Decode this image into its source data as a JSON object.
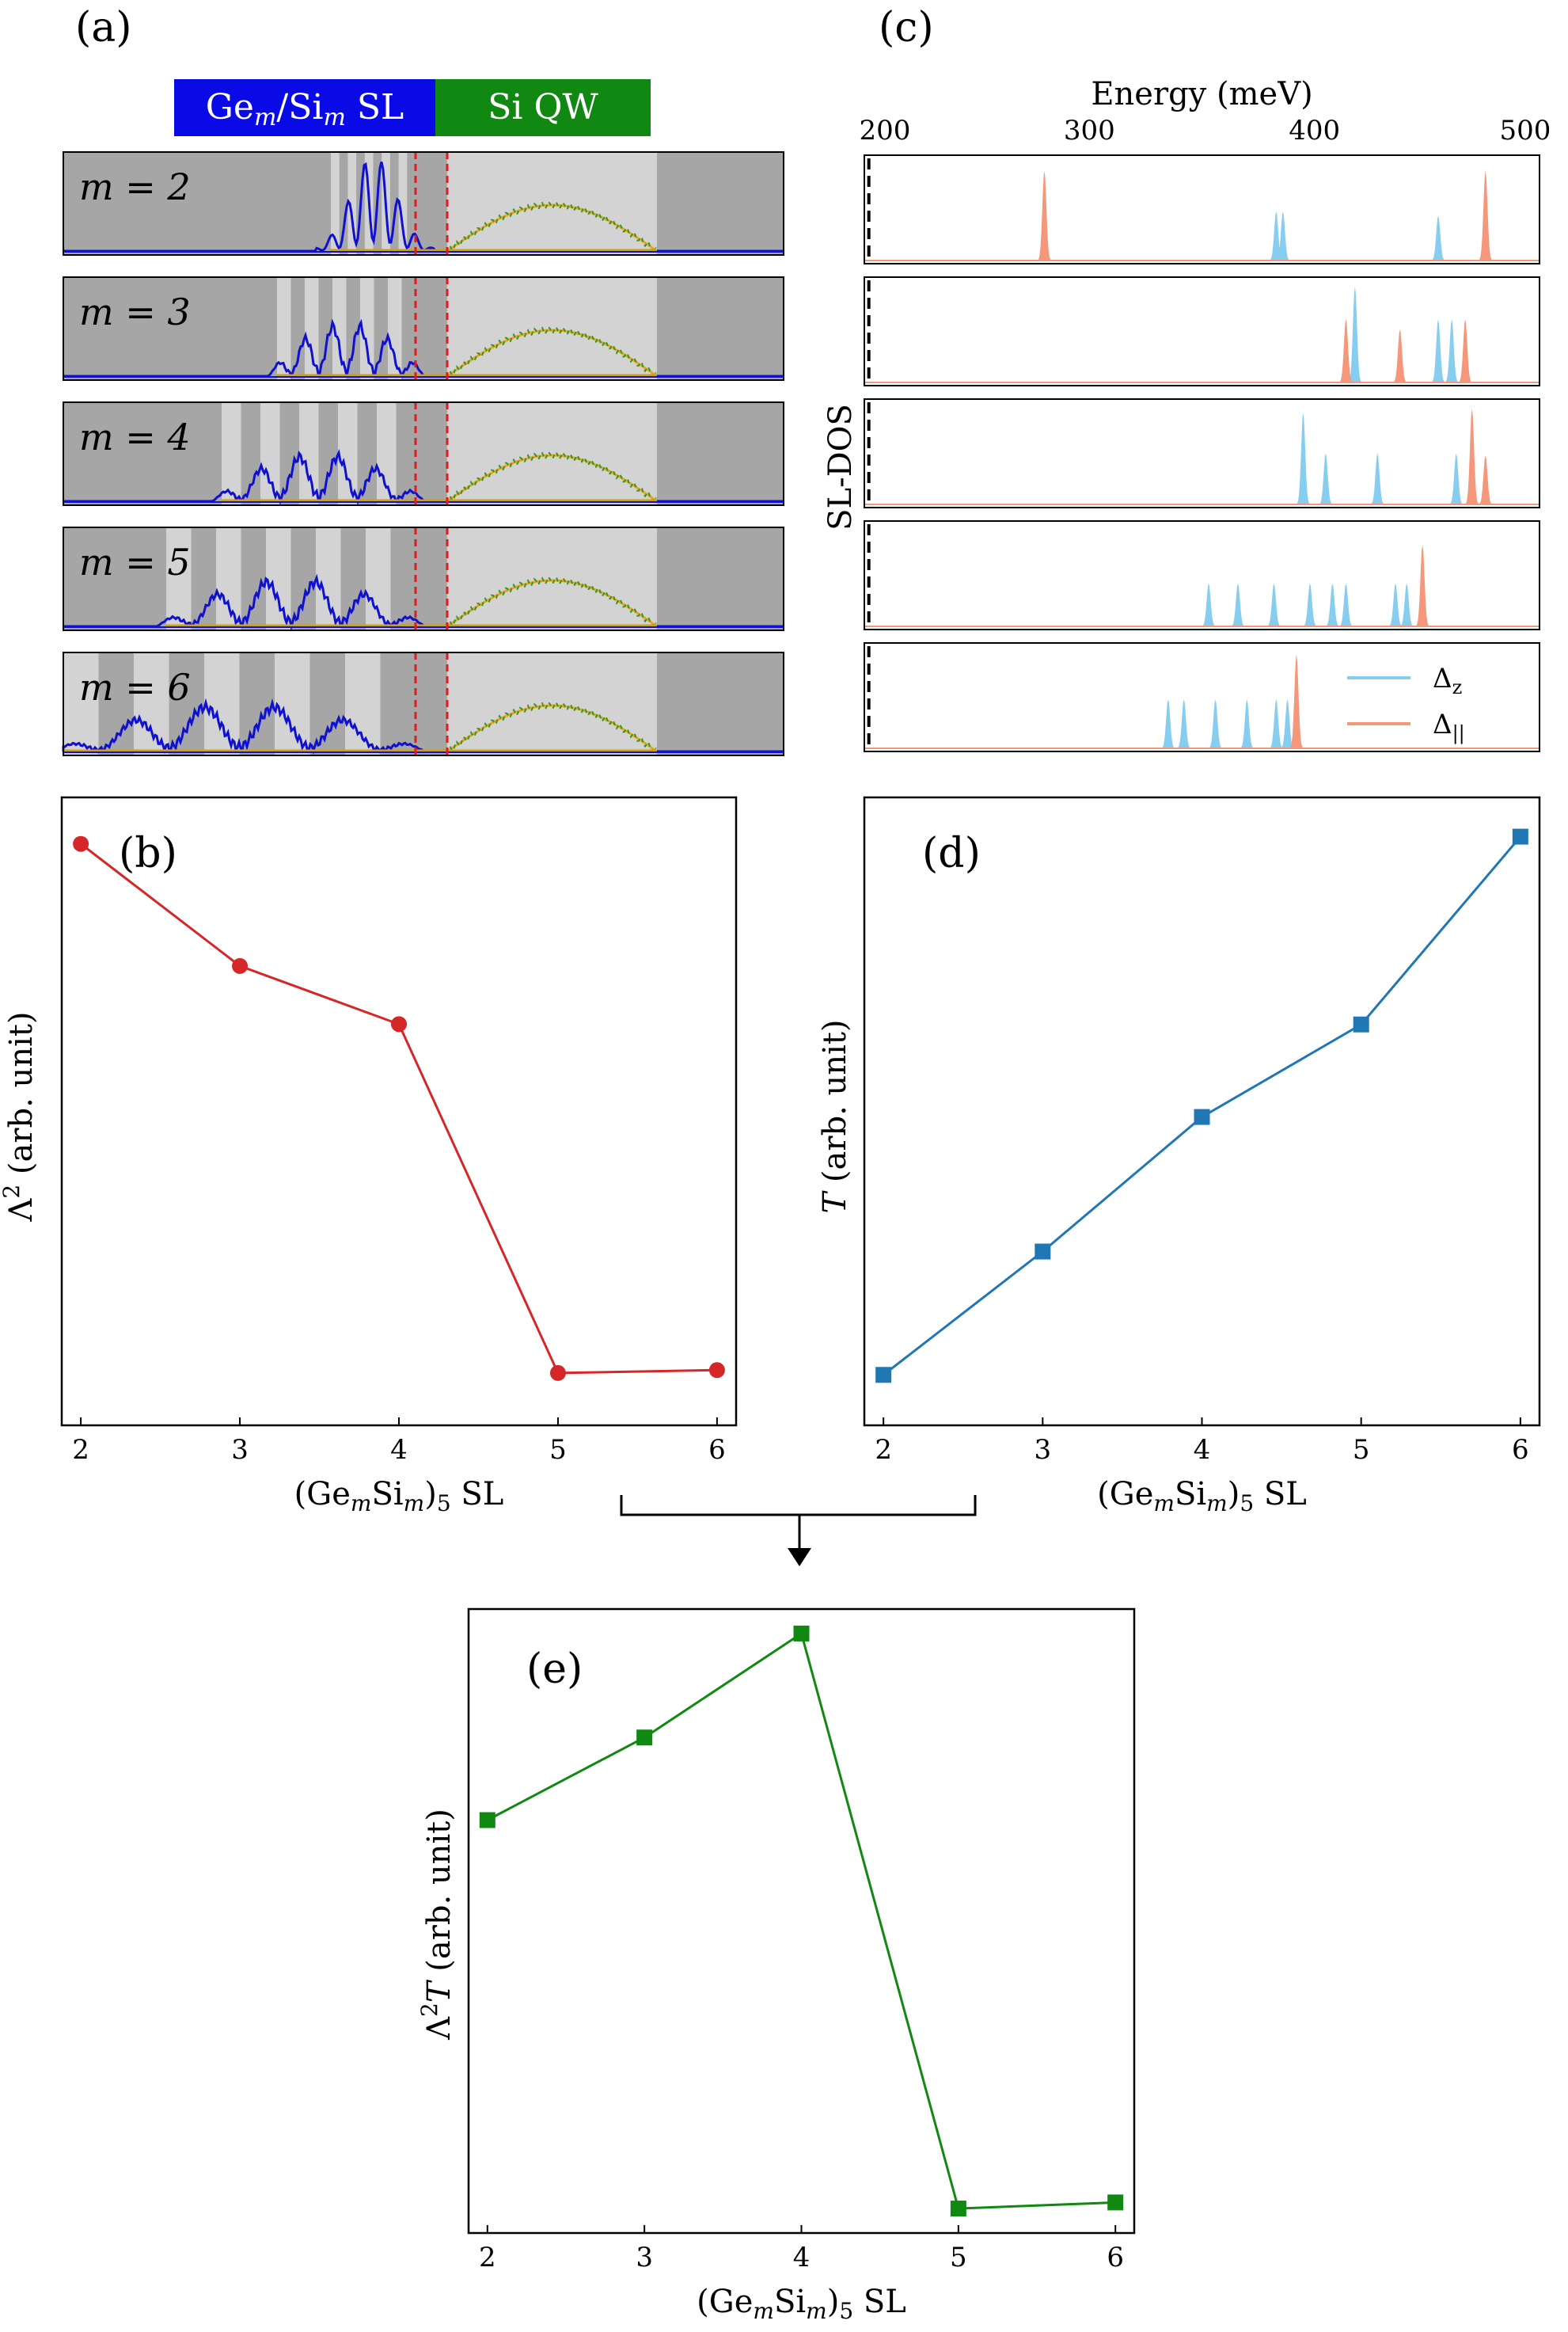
{
  "chart_data": [
    {
      "panel": "(a)",
      "type": "line",
      "header": {
        "sl_label": "Ge_m/Si_m SL",
        "qw_label": "Si QW",
        "sl_color": "#0a0ae6",
        "qw_color": "#118811"
      },
      "subplots": [
        {
          "label": "m = 2",
          "m": 2
        },
        {
          "label": "m = 3",
          "m": 3
        },
        {
          "label": "m = 4",
          "m": 4
        },
        {
          "label": "m = 5",
          "m": 5
        },
        {
          "label": "m = 6",
          "m": 6
        }
      ],
      "colors": {
        "sl_wavefunction": "#1010d0",
        "qw_wavefunction": "#f2a21a",
        "qw_overlay": "#2a9a2a",
        "interface": "#e31a1c",
        "ge": "#a6a6a6",
        "si": "#d3d3d3"
      }
    },
    {
      "panel": "(c)",
      "type": "area",
      "title": "Energy (meV)",
      "ylabel": "SL-DOS",
      "xlim": [
        200,
        500
      ],
      "xticks": [
        200,
        300,
        400,
        500
      ],
      "reference_line": 202,
      "legend": [
        {
          "name": "Δz",
          "color": "#87cdf0"
        },
        {
          "name": "Δ||",
          "color": "#f4977a"
        }
      ],
      "rows": [
        {
          "m": 2,
          "delta_z": [
            {
              "e": 383,
              "h": 0.48
            },
            {
              "e": 386,
              "h": 0.48
            },
            {
              "e": 455,
              "h": 0.44
            }
          ],
          "delta_par": [
            {
              "e": 280,
              "h": 0.88
            },
            {
              "e": 476,
              "h": 0.88
            }
          ]
        },
        {
          "m": 3,
          "delta_z": [
            {
              "e": 418,
              "h": 0.94
            },
            {
              "e": 455,
              "h": 0.62
            },
            {
              "e": 461,
              "h": 0.62
            }
          ],
          "delta_par": [
            {
              "e": 414,
              "h": 0.62
            },
            {
              "e": 438,
              "h": 0.52
            },
            {
              "e": 467,
              "h": 0.62
            }
          ]
        },
        {
          "m": 4,
          "delta_z": [
            {
              "e": 395,
              "h": 0.9
            },
            {
              "e": 405,
              "h": 0.5
            },
            {
              "e": 428,
              "h": 0.5
            },
            {
              "e": 463,
              "h": 0.5
            }
          ],
          "delta_par": [
            {
              "e": 470,
              "h": 0.94
            },
            {
              "e": 476,
              "h": 0.48
            }
          ]
        },
        {
          "m": 5,
          "delta_z": [
            {
              "e": 353,
              "h": 0.42
            },
            {
              "e": 366,
              "h": 0.42
            },
            {
              "e": 382,
              "h": 0.42
            },
            {
              "e": 398,
              "h": 0.42
            },
            {
              "e": 408,
              "h": 0.42
            },
            {
              "e": 414,
              "h": 0.42
            },
            {
              "e": 436,
              "h": 0.42
            },
            {
              "e": 441,
              "h": 0.42
            }
          ],
          "delta_par": [
            {
              "e": 448,
              "h": 0.8
            }
          ]
        },
        {
          "m": 6,
          "delta_z": [
            {
              "e": 335,
              "h": 0.48
            },
            {
              "e": 342,
              "h": 0.48
            },
            {
              "e": 356,
              "h": 0.48
            },
            {
              "e": 370,
              "h": 0.48
            },
            {
              "e": 383,
              "h": 0.48
            },
            {
              "e": 388,
              "h": 0.48
            }
          ],
          "delta_par": [
            {
              "e": 392,
              "h": 0.92
            }
          ]
        }
      ]
    },
    {
      "panel": "(b)",
      "type": "line",
      "xlabel": "(Ge_mSi_m)_5 SL",
      "ylabel": "Λ² (arb. unit)",
      "x": [
        2,
        3,
        4,
        5,
        6
      ],
      "values": [
        1.0,
        0.79,
        0.69,
        0.09,
        0.095
      ],
      "ylim": [
        0,
        1.08
      ],
      "color": "#d62728",
      "marker": "circle"
    },
    {
      "panel": "(d)",
      "type": "line",
      "xlabel": "(Ge_mSi_m)_5 SL",
      "ylabel": "T (arb. unit)",
      "x": [
        2,
        3,
        4,
        5,
        6
      ],
      "values": [
        0.09,
        0.31,
        0.55,
        0.715,
        1.05
      ],
      "ylim": [
        0.0,
        1.12
      ],
      "color": "#1f77b4",
      "marker": "square"
    },
    {
      "panel": "(e)",
      "type": "line",
      "xlabel": "(Ge_mSi_m)_5 SL",
      "ylabel": "Λ²T (arb. unit)",
      "x": [
        2,
        3,
        4,
        5,
        6
      ],
      "values": [
        0.705,
        0.84,
        1.01,
        0.07,
        0.08
      ],
      "ylim": [
        0.03,
        1.05
      ],
      "color": "#118811",
      "marker": "square"
    }
  ]
}
